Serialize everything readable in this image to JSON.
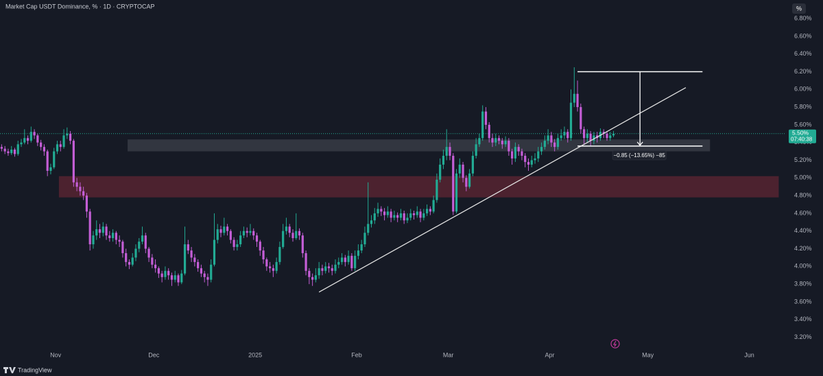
{
  "header": {
    "title": "Market Cap USDT Dominance, % · 1D · CRYPTOCAP",
    "scale_button": "%"
  },
  "chart_data": {
    "type": "candlestick",
    "up_color": "#22ab94",
    "down_color": "#c45ed6",
    "ohlc": [
      [
        5.35,
        5.38,
        5.3,
        5.33
      ],
      [
        5.33,
        5.36,
        5.27,
        5.3
      ],
      [
        5.3,
        5.33,
        5.25,
        5.28
      ],
      [
        5.28,
        5.36,
        5.26,
        5.32
      ],
      [
        5.32,
        5.34,
        5.24,
        5.27
      ],
      [
        5.27,
        5.42,
        5.25,
        5.38
      ],
      [
        5.38,
        5.44,
        5.35,
        5.4
      ],
      [
        5.4,
        5.55,
        5.38,
        5.45
      ],
      [
        5.45,
        5.48,
        5.38,
        5.42
      ],
      [
        5.42,
        5.58,
        5.4,
        5.52
      ],
      [
        5.52,
        5.55,
        5.44,
        5.48
      ],
      [
        5.48,
        5.5,
        5.36,
        5.4
      ],
      [
        5.4,
        5.43,
        5.31,
        5.35
      ],
      [
        5.35,
        5.38,
        5.25,
        5.3
      ],
      [
        5.3,
        5.32,
        5.02,
        5.08
      ],
      [
        5.08,
        5.16,
        5.04,
        5.12
      ],
      [
        5.12,
        5.34,
        5.1,
        5.3
      ],
      [
        5.3,
        5.42,
        5.27,
        5.38
      ],
      [
        5.38,
        5.42,
        5.3,
        5.35
      ],
      [
        5.35,
        5.55,
        5.33,
        5.48
      ],
      [
        5.48,
        5.57,
        5.44,
        5.5
      ],
      [
        5.5,
        5.53,
        5.38,
        5.42
      ],
      [
        5.42,
        5.44,
        4.9,
        4.95
      ],
      [
        4.95,
        5.0,
        4.85,
        4.9
      ],
      [
        4.9,
        4.95,
        4.8,
        4.85
      ],
      [
        4.85,
        4.9,
        4.75,
        4.8
      ],
      [
        4.8,
        4.83,
        4.55,
        4.62
      ],
      [
        4.62,
        4.65,
        4.18,
        4.25
      ],
      [
        4.25,
        4.4,
        4.2,
        4.35
      ],
      [
        4.35,
        4.52,
        4.3,
        4.42
      ],
      [
        4.42,
        4.48,
        4.32,
        4.38
      ],
      [
        4.38,
        4.5,
        4.34,
        4.45
      ],
      [
        4.45,
        4.48,
        4.3,
        4.35
      ],
      [
        4.35,
        4.4,
        4.28,
        4.32
      ],
      [
        4.32,
        4.42,
        4.28,
        4.38
      ],
      [
        4.38,
        4.4,
        4.25,
        4.3
      ],
      [
        4.3,
        4.35,
        4.22,
        4.28
      ],
      [
        4.28,
        4.3,
        4.1,
        4.15
      ],
      [
        4.15,
        4.2,
        4.0,
        4.05
      ],
      [
        4.05,
        4.08,
        3.97,
        4.02
      ],
      [
        4.02,
        4.15,
        4.0,
        4.1
      ],
      [
        4.1,
        4.25,
        4.06,
        4.2
      ],
      [
        4.2,
        4.32,
        4.16,
        4.28
      ],
      [
        4.28,
        4.45,
        4.25,
        4.35
      ],
      [
        4.35,
        4.38,
        4.15,
        4.2
      ],
      [
        4.2,
        4.22,
        4.05,
        4.1
      ],
      [
        4.1,
        4.14,
        3.98,
        4.02
      ],
      [
        4.02,
        4.08,
        3.93,
        3.98
      ],
      [
        3.98,
        4.0,
        3.87,
        3.92
      ],
      [
        3.92,
        3.95,
        3.82,
        3.88
      ],
      [
        3.88,
        4.0,
        3.85,
        3.95
      ],
      [
        3.95,
        3.98,
        3.85,
        3.9
      ],
      [
        3.9,
        3.93,
        3.78,
        3.85
      ],
      [
        3.85,
        3.95,
        3.82,
        3.9
      ],
      [
        3.9,
        3.92,
        3.78,
        3.82
      ],
      [
        3.82,
        3.96,
        3.8,
        3.92
      ],
      [
        3.92,
        4.45,
        3.9,
        4.25
      ],
      [
        4.25,
        4.3,
        4.14,
        4.18
      ],
      [
        4.18,
        4.22,
        4.05,
        4.1
      ],
      [
        4.1,
        4.14,
        4.0,
        4.05
      ],
      [
        4.05,
        4.08,
        3.94,
        3.98
      ],
      [
        3.98,
        4.02,
        3.88,
        3.92
      ],
      [
        3.92,
        3.95,
        3.82,
        3.88
      ],
      [
        3.88,
        3.92,
        3.78,
        3.85
      ],
      [
        3.85,
        4.08,
        3.82,
        4.02
      ],
      [
        4.02,
        4.6,
        4.0,
        4.3
      ],
      [
        4.3,
        4.48,
        4.26,
        4.42
      ],
      [
        4.42,
        4.46,
        4.33,
        4.38
      ],
      [
        4.38,
        4.55,
        4.35,
        4.45
      ],
      [
        4.45,
        4.48,
        4.35,
        4.4
      ],
      [
        4.4,
        4.42,
        4.26,
        4.3
      ],
      [
        4.3,
        4.33,
        4.18,
        4.22
      ],
      [
        4.22,
        4.3,
        4.18,
        4.25
      ],
      [
        4.25,
        4.4,
        4.22,
        4.35
      ],
      [
        4.35,
        4.45,
        4.32,
        4.4
      ],
      [
        4.4,
        4.44,
        4.33,
        4.38
      ],
      [
        4.38,
        4.48,
        4.35,
        4.4
      ],
      [
        4.4,
        4.43,
        4.3,
        4.35
      ],
      [
        4.35,
        4.38,
        4.22,
        4.28
      ],
      [
        4.28,
        4.3,
        4.12,
        4.18
      ],
      [
        4.18,
        4.22,
        4.03,
        4.08
      ],
      [
        4.08,
        4.1,
        3.95,
        4.0
      ],
      [
        4.0,
        4.05,
        3.93,
        3.98
      ],
      [
        3.98,
        4.02,
        3.88,
        3.95
      ],
      [
        3.95,
        4.1,
        3.92,
        4.05
      ],
      [
        4.05,
        4.28,
        4.02,
        4.22
      ],
      [
        4.22,
        4.48,
        4.2,
        4.4
      ],
      [
        4.4,
        4.55,
        4.36,
        4.45
      ],
      [
        4.45,
        4.48,
        4.33,
        4.38
      ],
      [
        4.38,
        4.42,
        4.28,
        4.32
      ],
      [
        4.32,
        4.6,
        4.3,
        4.4
      ],
      [
        4.4,
        4.43,
        4.3,
        4.35
      ],
      [
        4.35,
        4.38,
        4.1,
        4.15
      ],
      [
        4.15,
        4.18,
        3.9,
        3.95
      ],
      [
        3.95,
        3.98,
        3.8,
        3.88
      ],
      [
        3.88,
        3.92,
        3.78,
        3.85
      ],
      [
        3.85,
        3.98,
        3.82,
        3.9
      ],
      [
        3.9,
        4.05,
        3.86,
        3.98
      ],
      [
        3.98,
        4.02,
        3.9,
        3.95
      ],
      [
        3.95,
        4.05,
        3.92,
        4.0
      ],
      [
        4.0,
        4.04,
        3.93,
        3.98
      ],
      [
        3.98,
        4.02,
        3.9,
        3.95
      ],
      [
        3.95,
        4.08,
        3.92,
        4.02
      ],
      [
        4.02,
        4.1,
        3.98,
        4.05
      ],
      [
        4.05,
        4.15,
        4.02,
        4.1
      ],
      [
        4.1,
        4.13,
        4.0,
        4.05
      ],
      [
        4.05,
        4.18,
        4.02,
        4.12
      ],
      [
        4.12,
        4.15,
        3.95,
        3.98
      ],
      [
        3.98,
        4.18,
        3.95,
        4.12
      ],
      [
        4.12,
        4.25,
        4.08,
        4.18
      ],
      [
        4.18,
        4.3,
        4.15,
        4.25
      ],
      [
        4.25,
        4.45,
        4.22,
        4.38
      ],
      [
        4.38,
        4.95,
        4.35,
        4.48
      ],
      [
        4.48,
        4.58,
        4.44,
        4.52
      ],
      [
        4.52,
        4.66,
        4.48,
        4.6
      ],
      [
        4.6,
        4.72,
        4.56,
        4.65
      ],
      [
        4.65,
        4.68,
        4.57,
        4.62
      ],
      [
        4.62,
        4.66,
        4.52,
        4.58
      ],
      [
        4.58,
        4.68,
        4.55,
        4.62
      ],
      [
        4.62,
        4.65,
        4.5,
        4.55
      ],
      [
        4.55,
        4.63,
        4.52,
        4.58
      ],
      [
        4.58,
        4.61,
        4.5,
        4.55
      ],
      [
        4.55,
        4.65,
        4.52,
        4.6
      ],
      [
        4.6,
        4.63,
        4.48,
        4.52
      ],
      [
        4.52,
        4.6,
        4.49,
        4.55
      ],
      [
        4.55,
        4.65,
        4.52,
        4.6
      ],
      [
        4.6,
        4.63,
        4.53,
        4.58
      ],
      [
        4.58,
        4.68,
        4.55,
        4.62
      ],
      [
        4.62,
        4.65,
        4.5,
        4.55
      ],
      [
        4.55,
        4.65,
        4.52,
        4.6
      ],
      [
        4.6,
        4.7,
        4.57,
        4.65
      ],
      [
        4.65,
        4.68,
        4.58,
        4.62
      ],
      [
        4.62,
        4.8,
        4.6,
        4.75
      ],
      [
        4.75,
        5.05,
        4.72,
        4.98
      ],
      [
        4.98,
        5.22,
        4.95,
        5.15
      ],
      [
        5.15,
        5.32,
        5.1,
        5.25
      ],
      [
        5.25,
        5.55,
        5.2,
        5.35
      ],
      [
        5.35,
        5.4,
        5.2,
        5.25
      ],
      [
        5.25,
        5.28,
        4.58,
        4.62
      ],
      [
        4.62,
        5.1,
        4.6,
        5.05
      ],
      [
        5.05,
        5.22,
        5.0,
        5.15
      ],
      [
        5.15,
        5.18,
        4.95,
        5.0
      ],
      [
        5.0,
        5.03,
        4.85,
        4.9
      ],
      [
        4.9,
        5.1,
        4.88,
        5.05
      ],
      [
        5.05,
        5.3,
        5.02,
        5.25
      ],
      [
        5.25,
        5.45,
        5.22,
        5.38
      ],
      [
        5.38,
        5.5,
        5.35,
        5.45
      ],
      [
        5.45,
        5.82,
        5.42,
        5.75
      ],
      [
        5.75,
        5.8,
        5.55,
        5.6
      ],
      [
        5.6,
        5.63,
        5.4,
        5.45
      ],
      [
        5.45,
        5.5,
        5.35,
        5.4
      ],
      [
        5.4,
        5.5,
        5.36,
        5.45
      ],
      [
        5.45,
        5.48,
        5.38,
        5.42
      ],
      [
        5.42,
        5.45,
        5.33,
        5.38
      ],
      [
        5.38,
        5.47,
        5.35,
        5.42
      ],
      [
        5.42,
        5.45,
        5.25,
        5.3
      ],
      [
        5.3,
        5.33,
        5.15,
        5.22
      ],
      [
        5.22,
        5.4,
        5.18,
        5.35
      ],
      [
        5.35,
        5.38,
        5.25,
        5.3
      ],
      [
        5.3,
        5.33,
        5.2,
        5.25
      ],
      [
        5.25,
        5.28,
        5.12,
        5.18
      ],
      [
        5.18,
        5.22,
        5.08,
        5.15
      ],
      [
        5.15,
        5.25,
        5.12,
        5.2
      ],
      [
        5.2,
        5.28,
        5.16,
        5.22
      ],
      [
        5.22,
        5.35,
        5.18,
        5.3
      ],
      [
        5.3,
        5.4,
        5.26,
        5.35
      ],
      [
        5.35,
        5.48,
        5.32,
        5.42
      ],
      [
        5.42,
        5.55,
        5.38,
        5.48
      ],
      [
        5.48,
        5.52,
        5.35,
        5.4
      ],
      [
        5.4,
        5.44,
        5.3,
        5.35
      ],
      [
        5.35,
        5.5,
        5.32,
        5.45
      ],
      [
        5.45,
        5.55,
        5.42,
        5.48
      ],
      [
        5.48,
        5.58,
        5.44,
        5.52
      ],
      [
        5.52,
        5.55,
        5.4,
        5.45
      ],
      [
        5.45,
        6.0,
        5.42,
        5.85
      ],
      [
        5.85,
        6.25,
        5.8,
        5.95
      ],
      [
        5.95,
        6.1,
        5.75,
        5.8
      ],
      [
        5.8,
        5.84,
        5.5,
        5.55
      ],
      [
        5.55,
        5.58,
        5.38,
        5.45
      ],
      [
        5.45,
        5.55,
        5.4,
        5.5
      ],
      [
        5.5,
        5.53,
        5.36,
        5.42
      ],
      [
        5.42,
        5.52,
        5.38,
        5.48
      ],
      [
        5.48,
        5.52,
        5.4,
        5.45
      ],
      [
        5.45,
        5.56,
        5.42,
        5.52
      ],
      [
        5.52,
        5.55,
        5.45,
        5.5
      ],
      [
        5.5,
        5.53,
        5.42,
        5.45
      ],
      [
        5.45,
        5.52,
        5.42,
        5.48
      ],
      [
        5.48,
        5.53,
        5.46,
        5.5
      ]
    ],
    "xlim": [
      0,
      240
    ],
    "xticks": [
      {
        "value": 17,
        "label": "Nov"
      },
      {
        "value": 47,
        "label": "Dec"
      },
      {
        "value": 78,
        "label": "2025"
      },
      {
        "value": 109,
        "label": "Feb"
      },
      {
        "value": 137,
        "label": "Mar"
      },
      {
        "value": 168,
        "label": "Apr"
      },
      {
        "value": 198,
        "label": "May"
      },
      {
        "value": 229,
        "label": "Jun"
      }
    ],
    "ylim": [
      3.08,
      7.01
    ],
    "yticks": [
      {
        "value": 6.8,
        "label": "6.80%"
      },
      {
        "value": 6.6,
        "label": "6.60%"
      },
      {
        "value": 6.4,
        "label": "6.40%"
      },
      {
        "value": 6.2,
        "label": "6.20%"
      },
      {
        "value": 6.0,
        "label": "6.00%"
      },
      {
        "value": 5.8,
        "label": "5.80%"
      },
      {
        "value": 5.6,
        "label": "5.60%"
      },
      {
        "value": 5.4,
        "label": "5.40%"
      },
      {
        "value": 5.2,
        "label": "5.20%"
      },
      {
        "value": 5.0,
        "label": "5.00%"
      },
      {
        "value": 4.8,
        "label": "4.80%"
      },
      {
        "value": 4.6,
        "label": "4.60%"
      },
      {
        "value": 4.4,
        "label": "4.40%"
      },
      {
        "value": 4.2,
        "label": "4.20%"
      },
      {
        "value": 4.0,
        "label": "4.00%"
      },
      {
        "value": 3.8,
        "label": "3.80%"
      },
      {
        "value": 3.6,
        "label": "3.60%"
      },
      {
        "value": 3.4,
        "label": "3.40%"
      },
      {
        "value": 3.2,
        "label": "3.20%"
      }
    ],
    "last_price": {
      "value": 5.5,
      "label": "5.50%"
    },
    "countdown": "07:40:38",
    "drawings": {
      "zones": [
        {
          "x": [
            39,
            217
          ],
          "y": [
            5.3,
            5.435
          ],
          "color": "#3a3d47"
        },
        {
          "x": [
            18,
            238
          ],
          "y": [
            4.78,
            5.02
          ],
          "color": "#5a2432"
        }
      ],
      "trendline": {
        "x": [
          97.5,
          209.6
        ],
        "y": [
          3.71,
          6.02
        ]
      },
      "measure": {
        "top": 6.2,
        "bottom": 5.36,
        "x": [
          176.5,
          214.7
        ],
        "arrow_x": 195.6,
        "label": "−0.85 (−13.65%) −85"
      }
    }
  },
  "footer": {
    "brand": "TradingView"
  }
}
